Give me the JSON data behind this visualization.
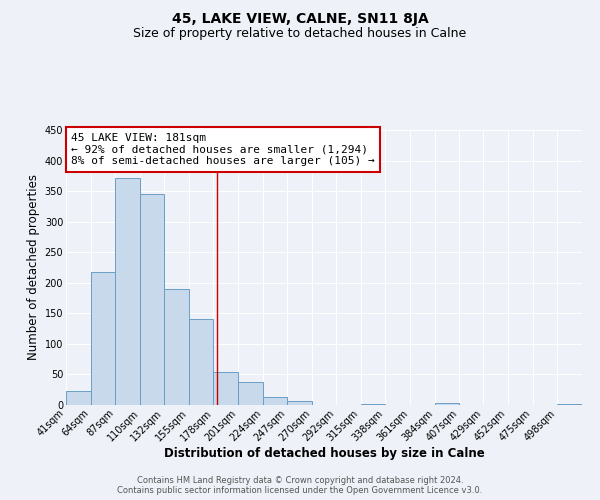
{
  "title": "45, LAKE VIEW, CALNE, SN11 8JA",
  "subtitle": "Size of property relative to detached houses in Calne",
  "xlabel": "Distribution of detached houses by size in Calne",
  "ylabel": "Number of detached properties",
  "bin_labels": [
    "41sqm",
    "64sqm",
    "87sqm",
    "110sqm",
    "132sqm",
    "155sqm",
    "178sqm",
    "201sqm",
    "224sqm",
    "247sqm",
    "270sqm",
    "292sqm",
    "315sqm",
    "338sqm",
    "361sqm",
    "384sqm",
    "407sqm",
    "429sqm",
    "452sqm",
    "475sqm",
    "498sqm"
  ],
  "bin_edges": [
    41,
    64,
    87,
    110,
    132,
    155,
    178,
    201,
    224,
    247,
    270,
    292,
    315,
    338,
    361,
    384,
    407,
    429,
    452,
    475,
    498,
    521
  ],
  "bar_heights": [
    23,
    218,
    372,
    345,
    190,
    141,
    54,
    38,
    13,
    6,
    0,
    0,
    2,
    0,
    0,
    3,
    0,
    0,
    0,
    0,
    2
  ],
  "bar_color": "#c9d9ec",
  "bar_edge_color": "#6a9ec5",
  "property_value": 181,
  "vline_color": "#cc0000",
  "annotation_line1": "45 LAKE VIEW: 181sqm",
  "annotation_line2": "← 92% of detached houses are smaller (1,294)",
  "annotation_line3": "8% of semi-detached houses are larger (105) →",
  "annotation_box_color": "#ffffff",
  "annotation_box_edge_color": "#cc0000",
  "ylim": [
    0,
    450
  ],
  "yticks": [
    0,
    50,
    100,
    150,
    200,
    250,
    300,
    350,
    400,
    450
  ],
  "footer_line1": "Contains HM Land Registry data © Crown copyright and database right 2024.",
  "footer_line2": "Contains public sector information licensed under the Open Government Licence v3.0.",
  "background_color": "#eef2f8",
  "grid_color": "#ffffff",
  "title_fontsize": 10,
  "subtitle_fontsize": 9,
  "axis_label_fontsize": 8.5,
  "tick_fontsize": 7,
  "annotation_fontsize": 8,
  "footer_fontsize": 6
}
